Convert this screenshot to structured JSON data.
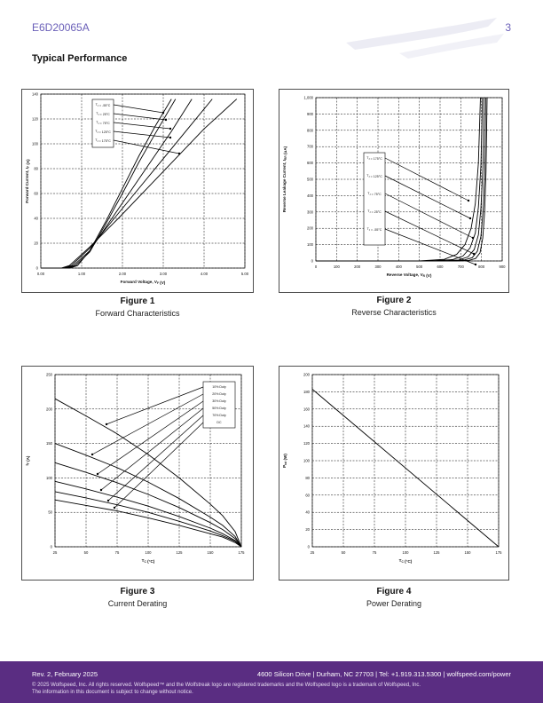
{
  "header": {
    "part_number": "E6D20065A",
    "page_number": "3"
  },
  "section_title": "Typical Performance",
  "figures": [
    {
      "number": "Figure 1",
      "caption": "Forward Characteristics"
    },
    {
      "number": "Figure 2",
      "caption": "Reverse Characteristics"
    },
    {
      "number": "Figure 3",
      "caption": "Current Derating"
    },
    {
      "number": "Figure 4",
      "caption": "Power Derating"
    }
  ],
  "chart_data": [
    {
      "type": "line",
      "xlabel": "Forward Voltage, V_F (V)",
      "ylabel": "Forward Current, I_F (A)",
      "xlim": [
        0,
        5
      ],
      "ylim": [
        0,
        140
      ],
      "xticks": [
        "0.00",
        "1.00",
        "2.00",
        "3.00",
        "4.00",
        "5.00"
      ],
      "yticks": [
        "0",
        "20",
        "40",
        "60",
        "80",
        "100",
        "120",
        "140"
      ],
      "grid": true,
      "legend": [
        "T_J = -55°C",
        "T_J = 25°C",
        "T_J = 75°C",
        "T_J = 125°C",
        "T_J = 175°C"
      ],
      "series": [
        {
          "name": "T_J = -55°C",
          "x": [
            0.0,
            0.7,
            0.9,
            1.2,
            1.6,
            2.0,
            2.4,
            2.8,
            3.2
          ],
          "y": [
            0,
            0,
            2,
            14,
            38,
            64,
            90,
            114,
            136
          ]
        },
        {
          "name": "T_J = 25°C",
          "x": [
            0.0,
            0.65,
            0.85,
            1.2,
            1.6,
            2.0,
            2.4,
            2.8,
            3.3
          ],
          "y": [
            0,
            0,
            2,
            13,
            36,
            60,
            85,
            108,
            136
          ]
        },
        {
          "name": "T_J = 75°C",
          "x": [
            0.0,
            0.6,
            0.8,
            1.2,
            1.7,
            2.2,
            2.7,
            3.2,
            3.7
          ],
          "y": [
            0,
            0,
            2,
            14,
            38,
            62,
            86,
            110,
            136
          ]
        },
        {
          "name": "T_J = 125°C",
          "x": [
            0.0,
            0.55,
            0.75,
            1.2,
            1.8,
            2.4,
            3.0,
            3.6,
            4.2
          ],
          "y": [
            0,
            0,
            2,
            16,
            40,
            64,
            88,
            112,
            136
          ]
        },
        {
          "name": "T_J = 175°C",
          "x": [
            0.0,
            0.5,
            0.7,
            1.2,
            1.9,
            2.6,
            3.3,
            4.0,
            4.8
          ],
          "y": [
            0,
            0,
            2,
            17,
            40,
            64,
            88,
            112,
            136
          ]
        }
      ]
    },
    {
      "type": "line",
      "xlabel": "Reverse Voltage, V_R (V)",
      "ylabel": "Reverse Leakage Current, I_RR (uA)",
      "xlim": [
        0,
        900
      ],
      "ylim": [
        0,
        1000
      ],
      "xticks": [
        "0",
        "100",
        "200",
        "300",
        "400",
        "500",
        "600",
        "700",
        "800",
        "900"
      ],
      "yticks": [
        "0",
        "100",
        "200",
        "300",
        "400",
        "500",
        "600",
        "700",
        "800",
        "900",
        "1,000"
      ],
      "grid": true,
      "legend": [
        "T_J = 175°C",
        "T_J = 125°C",
        "T_J = 75°C",
        "T_J = 25°C",
        "T_J = -55°C"
      ],
      "series": [
        {
          "name": "T_J = 175°C",
          "x": [
            0,
            500,
            620,
            680,
            720,
            750,
            770,
            785,
            795
          ],
          "y": [
            0,
            0,
            10,
            40,
            100,
            200,
            350,
            600,
            1000
          ]
        },
        {
          "name": "T_J = 125°C",
          "x": [
            0,
            550,
            660,
            710,
            745,
            770,
            785,
            797,
            805
          ],
          "y": [
            0,
            0,
            8,
            30,
            80,
            170,
            330,
            580,
            1000
          ]
        },
        {
          "name": "T_J = 75°C",
          "x": [
            0,
            600,
            690,
            735,
            765,
            785,
            797,
            807,
            813
          ],
          "y": [
            0,
            0,
            6,
            25,
            70,
            160,
            320,
            570,
            1000
          ]
        },
        {
          "name": "T_J = 25°C",
          "x": [
            0,
            640,
            715,
            755,
            780,
            797,
            808,
            816,
            821
          ],
          "y": [
            0,
            0,
            5,
            20,
            60,
            150,
            310,
            560,
            1000
          ]
        },
        {
          "name": "T_J = -55°C",
          "x": [
            0,
            680,
            740,
            772,
            793,
            806,
            815,
            822,
            827
          ],
          "y": [
            0,
            0,
            4,
            15,
            50,
            140,
            300,
            550,
            1000
          ]
        }
      ]
    },
    {
      "type": "line",
      "xlabel": "T_C (°C)",
      "ylabel": "I_F (A)",
      "xlim": [
        25,
        175
      ],
      "ylim": [
        0,
        250
      ],
      "xticks": [
        "25",
        "50",
        "75",
        "100",
        "125",
        "150",
        "175"
      ],
      "yticks": [
        "0",
        "50",
        "100",
        "150",
        "200",
        "250"
      ],
      "grid": true,
      "legend": [
        "10% Duty",
        "20% Duty",
        "30% Duty",
        "50% Duty",
        "70% Duty",
        "DC"
      ],
      "series": [
        {
          "name": "10% Duty",
          "x": [
            25,
            50,
            75,
            100,
            125,
            150,
            160,
            170,
            175
          ],
          "y": [
            215,
            190,
            164,
            134,
            100,
            62,
            45,
            22,
            0
          ]
        },
        {
          "name": "20% Duty",
          "x": [
            25,
            50,
            75,
            100,
            125,
            150,
            160,
            170,
            175
          ],
          "y": [
            150,
            133,
            115,
            94,
            70,
            43,
            31,
            15,
            0
          ]
        },
        {
          "name": "30% Duty",
          "x": [
            25,
            50,
            75,
            100,
            125,
            150,
            160,
            170,
            175
          ],
          "y": [
            122,
            108,
            93,
            76,
            57,
            35,
            25,
            12,
            0
          ]
        },
        {
          "name": "50% Duty",
          "x": [
            25,
            50,
            75,
            100,
            125,
            150,
            160,
            170,
            175
          ],
          "y": [
            95,
            84,
            72,
            59,
            44,
            27,
            19,
            9,
            0
          ]
        },
        {
          "name": "70% Duty",
          "x": [
            25,
            50,
            75,
            100,
            125,
            150,
            160,
            170,
            175
          ],
          "y": [
            80,
            71,
            61,
            50,
            37,
            23,
            16,
            8,
            0
          ]
        },
        {
          "name": "DC",
          "x": [
            25,
            50,
            75,
            100,
            125,
            150,
            160,
            170,
            175
          ],
          "y": [
            68,
            60,
            52,
            42,
            31,
            19,
            14,
            6,
            0
          ]
        }
      ]
    },
    {
      "type": "line",
      "xlabel": "T_C (°C)",
      "ylabel": "P_tot (W)",
      "xlim": [
        25,
        175
      ],
      "ylim": [
        0,
        200
      ],
      "xticks": [
        "25",
        "50",
        "75",
        "100",
        "125",
        "150",
        "175"
      ],
      "yticks": [
        "0",
        "20",
        "40",
        "60",
        "80",
        "100",
        "120",
        "140",
        "160",
        "180",
        "200"
      ],
      "grid": true,
      "series": [
        {
          "name": "",
          "x": [
            25,
            175
          ],
          "y": [
            183,
            0
          ]
        }
      ]
    }
  ],
  "footer": {
    "revision": "Rev. 2, February 2025",
    "address": "4600 Silicon Drive  |  Durham, NC 27703  |  Tel: +1.919.313.5300  |  wolfspeed.com/power",
    "copyright_line1": "© 2025 Wolfspeed, Inc. All rights reserved. Wolfspeed™ and the Wolfstreak logo are registered trademarks and the Wolfspeed logo is a trademark of Wolfspeed, Inc.",
    "copyright_line2": "The information in this document is subject to change without notice."
  }
}
